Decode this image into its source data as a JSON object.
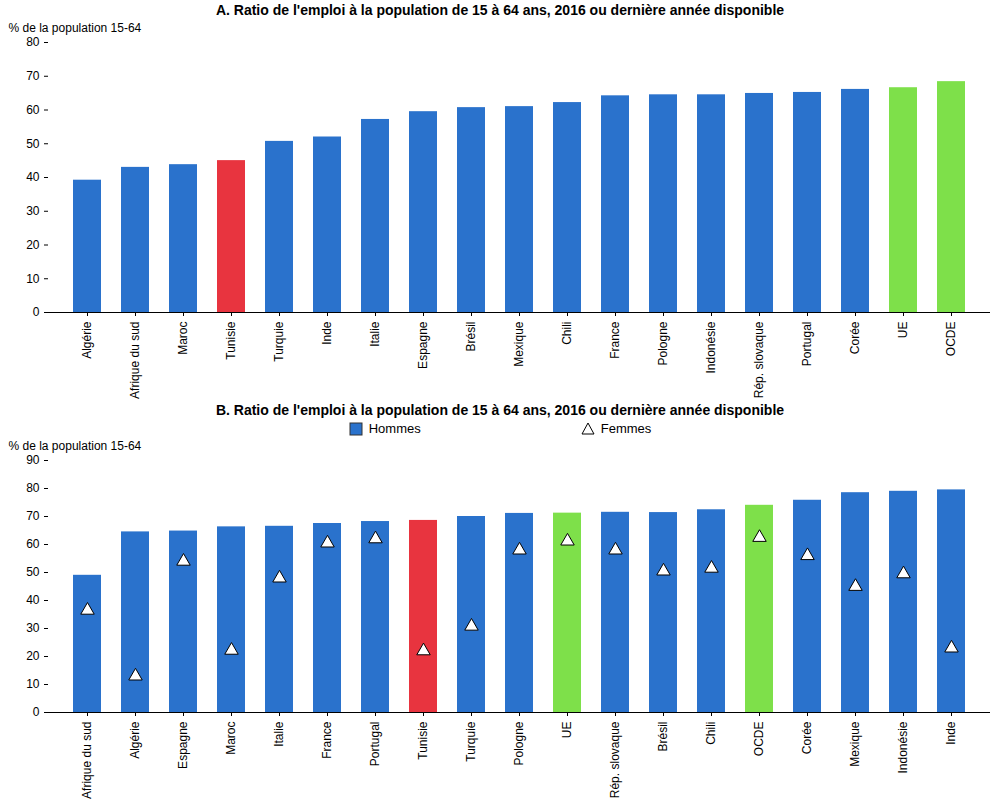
{
  "chart_data": [
    {
      "type": "bar",
      "title": "A. Ratio de l'emploi à la population de 15 à 64 ans, 2016 ou dernière année disponible",
      "y_label": "% de la population 15-64",
      "categories": [
        "Algérie",
        "Afrique du sud",
        "Maroc",
        "Tunisie",
        "Turquie",
        "Inde",
        "Italie",
        "Espagne",
        "Brésil",
        "Mexique",
        "Chili",
        "France",
        "Pologne",
        "Indonésie",
        "Rép. slovaque",
        "Portugal",
        "Corée",
        "UE",
        "OCDE"
      ],
      "values": [
        39.2,
        43,
        43.8,
        45,
        50.7,
        52,
        57.2,
        59.5,
        60.7,
        61,
        62.2,
        64.2,
        64.5,
        64.5,
        64.9,
        65.2,
        66.1,
        66.6,
        68.4
      ],
      "colors": [
        "#2a72cc",
        "#2a72cc",
        "#2a72cc",
        "#e8343f",
        "#2a72cc",
        "#2a72cc",
        "#2a72cc",
        "#2a72cc",
        "#2a72cc",
        "#2a72cc",
        "#2a72cc",
        "#2a72cc",
        "#2a72cc",
        "#2a72cc",
        "#2a72cc",
        "#2a72cc",
        "#2a72cc",
        "#7ee04a",
        "#7ee04a"
      ],
      "ylim": [
        0,
        80
      ],
      "yticks": [
        0,
        10,
        20,
        30,
        40,
        50,
        60,
        70,
        80
      ],
      "grid": false
    },
    {
      "type": "bar",
      "title": "B. Ratio de l'emploi à la population de 15 à 64 ans, 2016 ou dernière année disponible",
      "y_label": "% de la population 15-64",
      "categories": [
        "Afrique du sud",
        "Algérie",
        "Espagne",
        "Maroc",
        "Italie",
        "France",
        "Portugal",
        "Tunisie",
        "Turquie",
        "Pologne",
        "UE",
        "Rép. slovaque",
        "Brésil",
        "Chili",
        "OCDE",
        "Corée",
        "Mexique",
        "Indonésie",
        "Inde"
      ],
      "series": [
        {
          "name": "Hommes",
          "type": "bar",
          "color": "#2a72cc",
          "colors": [
            "#2a72cc",
            "#2a72cc",
            "#2a72cc",
            "#2a72cc",
            "#2a72cc",
            "#2a72cc",
            "#2a72cc",
            "#e8343f",
            "#2a72cc",
            "#2a72cc",
            "#7ee04a",
            "#2a72cc",
            "#2a72cc",
            "#2a72cc",
            "#7ee04a",
            "#2a72cc",
            "#2a72cc",
            "#2a72cc",
            "#2a72cc"
          ],
          "values": [
            49,
            64.5,
            64.8,
            66.3,
            66.5,
            67.5,
            68.2,
            68.6,
            70,
            71.1,
            71.2,
            71.5,
            71.4,
            72.4,
            74,
            75.8,
            78.5,
            79,
            79.5
          ]
        },
        {
          "name": "Femmes",
          "type": "scatter",
          "marker": "triangle",
          "color": "#ffffff",
          "values": [
            36.5,
            13,
            54,
            22.2,
            48,
            60.5,
            62,
            22,
            30.8,
            58,
            61.2,
            58,
            50.5,
            51.5,
            62.5,
            56,
            45,
            49.5,
            23
          ]
        }
      ],
      "legend": "top",
      "ylim": [
        0,
        90
      ],
      "yticks": [
        0,
        10,
        20,
        30,
        40,
        50,
        60,
        70,
        80,
        90
      ],
      "grid": false
    }
  ]
}
